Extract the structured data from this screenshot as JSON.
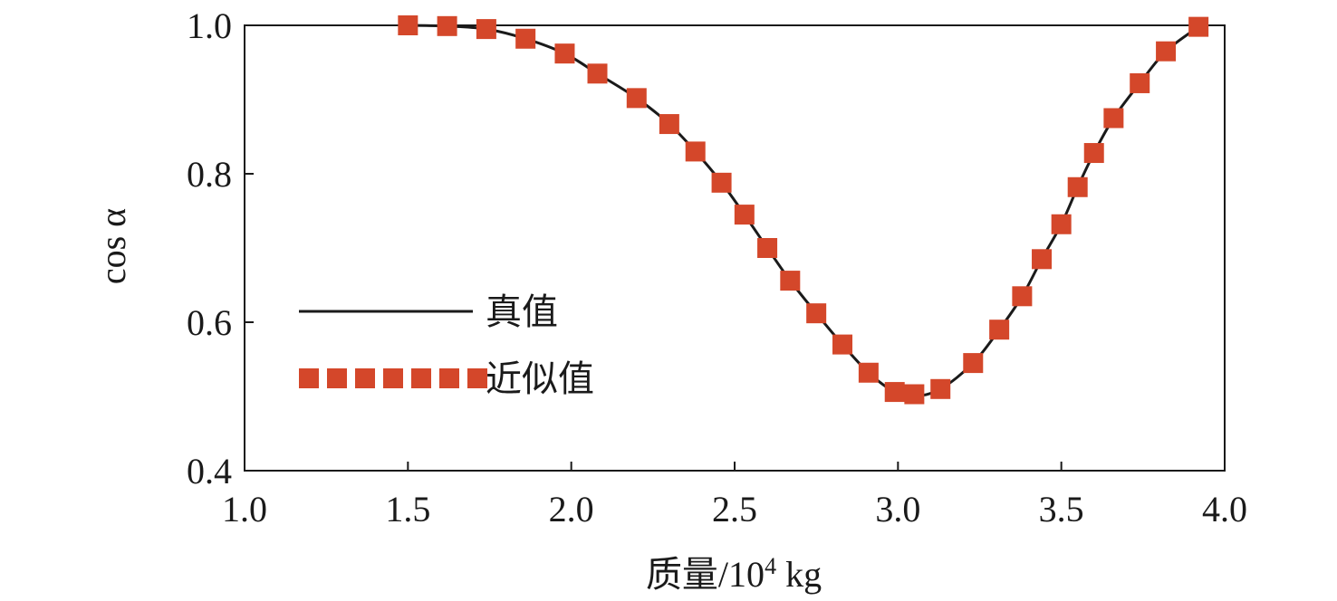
{
  "chart_data": {
    "type": "line",
    "title": "",
    "xlabel": "质量/10",
    "xlabel_sup": "4",
    "xlabel_unit": " kg",
    "ylabel": "cos α",
    "xlim": [
      1.0,
      4.0
    ],
    "ylim": [
      0.4,
      1.0
    ],
    "xticks": [
      "1.0",
      "1.5",
      "2.0",
      "2.5",
      "3.0",
      "3.5",
      "4.0"
    ],
    "yticks": [
      "0.4",
      "0.6",
      "0.8",
      "1.0"
    ],
    "legend_position": "center-left",
    "grid": false,
    "series": [
      {
        "name": "真值",
        "style": "solid",
        "color": "#1a1a1a",
        "x": [
          1.5,
          1.62,
          1.74,
          1.86,
          1.98,
          2.08,
          2.2,
          2.3,
          2.38,
          2.46,
          2.53,
          2.6,
          2.67,
          2.75,
          2.83,
          2.91,
          2.99,
          3.05,
          3.13,
          3.23,
          3.31,
          3.38,
          3.44,
          3.5,
          3.55,
          3.6,
          3.66,
          3.74,
          3.82,
          3.92
        ],
        "y": [
          1.0,
          0.999,
          0.995,
          0.982,
          0.962,
          0.935,
          0.902,
          0.867,
          0.83,
          0.788,
          0.745,
          0.7,
          0.656,
          0.612,
          0.57,
          0.532,
          0.506,
          0.5,
          0.51,
          0.545,
          0.59,
          0.635,
          0.685,
          0.732,
          0.782,
          0.828,
          0.875,
          0.922,
          0.965,
          0.998
        ]
      },
      {
        "name": "近似值",
        "style": "dotted",
        "color": "#d4472a",
        "x": [
          1.5,
          1.62,
          1.74,
          1.86,
          1.98,
          2.08,
          2.2,
          2.3,
          2.38,
          2.46,
          2.53,
          2.6,
          2.67,
          2.75,
          2.83,
          2.91,
          2.99,
          3.05,
          3.13,
          3.23,
          3.31,
          3.38,
          3.44,
          3.5,
          3.55,
          3.6,
          3.66,
          3.74,
          3.82,
          3.92
        ],
        "y": [
          1.0,
          0.999,
          0.995,
          0.982,
          0.962,
          0.935,
          0.902,
          0.867,
          0.83,
          0.788,
          0.745,
          0.7,
          0.656,
          0.612,
          0.57,
          0.532,
          0.506,
          0.503,
          0.51,
          0.545,
          0.59,
          0.635,
          0.685,
          0.732,
          0.782,
          0.828,
          0.875,
          0.922,
          0.965,
          0.998
        ]
      }
    ]
  }
}
